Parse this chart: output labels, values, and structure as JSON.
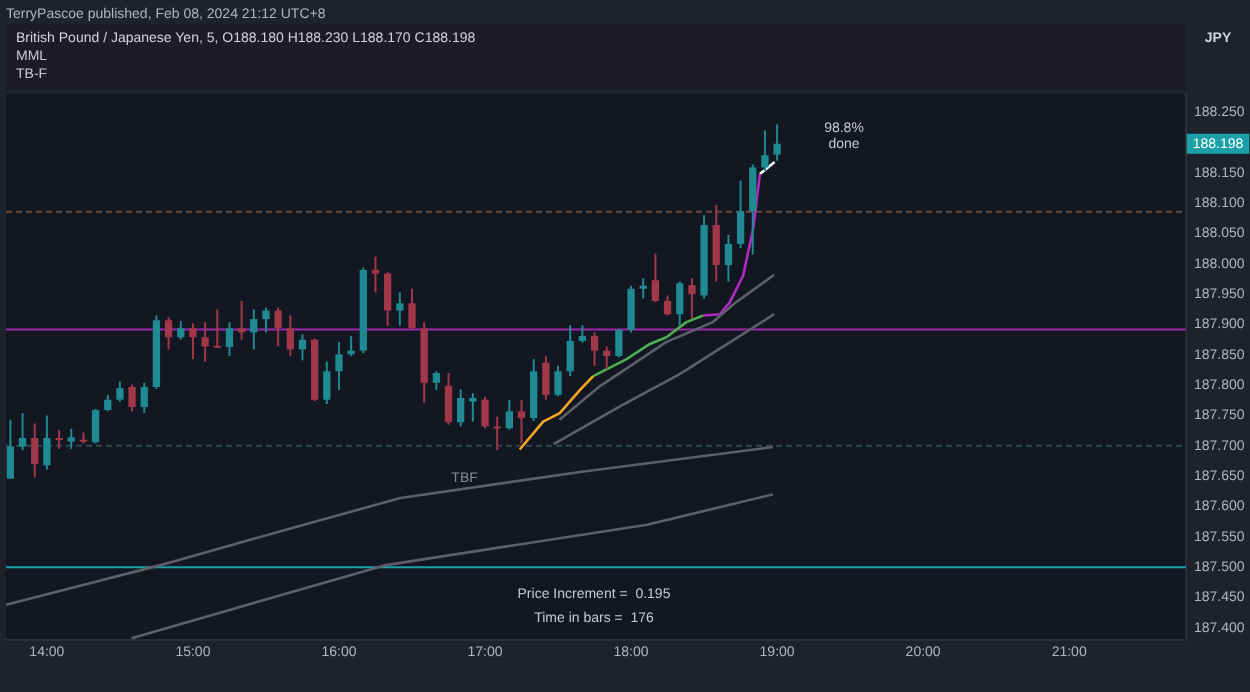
{
  "chart_data": {
    "type": "candlestick",
    "title": "British Pound / Japanese Yen, 5, O188.180 H188.230 L188.170 C188.198",
    "ylabel": "JPY",
    "annotations": [
      "TerryPascoe published, Feb 08, 2024 21:12 UTC+8",
      "MML",
      "TB-F",
      "98.8%\ndone",
      "Price Increment =  0.195",
      "Time in bars =  176",
      {
        "text": "TBF",
        "x": 16.86,
        "y": 187.647
      },
      {
        "text": "188.198",
        "y": 188.198
      }
    ],
    "x": [
      13.75,
      13.8333,
      13.9167,
      14,
      14.0833,
      14.1667,
      14.25,
      14.3333,
      14.4167,
      14.5,
      14.5833,
      14.6667,
      14.75,
      14.8333,
      14.9167,
      15,
      15.0833,
      15.1667,
      15.25,
      15.3333,
      15.4167,
      15.5,
      15.5833,
      15.6667,
      15.75,
      15.8333,
      15.9167,
      16,
      16.0833,
      16.1667,
      16.25,
      16.3333,
      16.4167,
      16.5,
      16.5833,
      16.6667,
      16.75,
      16.8333,
      16.9167,
      17,
      17.0833,
      17.1667,
      17.25,
      17.3333,
      17.4167,
      17.5,
      17.5833,
      17.6667,
      17.75,
      17.8333,
      17.9167,
      18,
      18.0833,
      18.1667,
      18.25,
      18.3333,
      18.4167,
      18.5,
      18.5833,
      18.6667,
      18.75,
      18.8333,
      18.9167,
      19
    ],
    "ohlc": [
      [
        187.646,
        187.743,
        187.646,
        187.699
      ],
      [
        187.699,
        187.754,
        187.693,
        187.713
      ],
      [
        187.713,
        187.737,
        187.648,
        187.67
      ],
      [
        187.668,
        187.75,
        187.661,
        187.713
      ],
      [
        187.713,
        187.726,
        187.695,
        187.711
      ],
      [
        187.707,
        187.728,
        187.695,
        187.714
      ],
      [
        187.71,
        187.722,
        187.704,
        187.708
      ],
      [
        187.706,
        187.761,
        187.704,
        187.759
      ],
      [
        187.759,
        187.784,
        187.757,
        187.776
      ],
      [
        187.776,
        187.806,
        187.773,
        187.795
      ],
      [
        187.797,
        187.801,
        187.757,
        187.764
      ],
      [
        187.764,
        187.804,
        187.754,
        187.797
      ],
      [
        187.797,
        187.915,
        187.794,
        187.907
      ],
      [
        187.907,
        187.912,
        187.859,
        187.879
      ],
      [
        187.879,
        187.906,
        187.875,
        187.894
      ],
      [
        187.894,
        187.902,
        187.843,
        187.879
      ],
      [
        187.879,
        187.904,
        187.839,
        187.864
      ],
      [
        187.865,
        187.925,
        187.862,
        187.863
      ],
      [
        187.863,
        187.904,
        187.848,
        187.894
      ],
      [
        187.894,
        187.939,
        187.875,
        187.887
      ],
      [
        187.887,
        187.925,
        187.859,
        187.909
      ],
      [
        187.909,
        187.928,
        187.887,
        187.923
      ],
      [
        187.923,
        187.928,
        187.864,
        187.894
      ],
      [
        187.894,
        187.915,
        187.848,
        187.859
      ],
      [
        187.859,
        187.884,
        187.841,
        187.875
      ],
      [
        187.875,
        187.877,
        187.774,
        187.776
      ],
      [
        187.776,
        187.839,
        187.769,
        187.823
      ],
      [
        187.823,
        187.871,
        187.792,
        187.851
      ],
      [
        187.851,
        187.881,
        187.848,
        187.857
      ],
      [
        187.857,
        187.994,
        187.853,
        187.99
      ],
      [
        187.99,
        188.012,
        187.953,
        187.984
      ],
      [
        187.984,
        187.987,
        187.898,
        187.923
      ],
      [
        187.923,
        187.953,
        187.898,
        187.935
      ],
      [
        187.935,
        187.959,
        187.892,
        187.894
      ],
      [
        187.894,
        187.904,
        187.771,
        187.804
      ],
      [
        187.804,
        187.823,
        187.792,
        187.82
      ],
      [
        187.799,
        187.82,
        187.735,
        187.739
      ],
      [
        187.739,
        187.793,
        187.732,
        187.779
      ],
      [
        187.773,
        187.787,
        187.74,
        187.779
      ],
      [
        187.776,
        187.781,
        187.729,
        187.732
      ],
      [
        187.732,
        187.748,
        187.693,
        187.729
      ],
      [
        187.729,
        187.776,
        187.727,
        187.757
      ],
      [
        187.757,
        187.776,
        187.704,
        187.746
      ],
      [
        187.746,
        187.843,
        187.741,
        187.823
      ],
      [
        187.837,
        187.848,
        187.776,
        187.784
      ],
      [
        187.784,
        187.832,
        187.782,
        187.823
      ],
      [
        187.823,
        187.899,
        187.815,
        187.873
      ],
      [
        187.873,
        187.899,
        187.87,
        187.881
      ],
      [
        187.881,
        187.887,
        187.832,
        187.857
      ],
      [
        187.857,
        187.864,
        187.827,
        187.848
      ],
      [
        187.848,
        187.893,
        187.846,
        187.891
      ],
      [
        187.891,
        187.964,
        187.887,
        187.959
      ],
      [
        187.959,
        187.976,
        187.943,
        187.964
      ],
      [
        187.973,
        188.017,
        187.937,
        187.939
      ],
      [
        187.939,
        187.948,
        187.915,
        187.917
      ],
      [
        187.917,
        187.971,
        187.898,
        187.968
      ],
      [
        187.965,
        187.976,
        187.909,
        187.95
      ],
      [
        187.948,
        188.08,
        187.943,
        188.064
      ],
      [
        188.064,
        188.097,
        187.971,
        187.998
      ],
      [
        187.998,
        188.048,
        187.971,
        188.033
      ],
      [
        188.033,
        188.137,
        188.026,
        188.087
      ],
      [
        188.087,
        188.164,
        188.015,
        188.159
      ],
      [
        188.159,
        188.22,
        188.153,
        188.179
      ],
      [
        188.18,
        188.23,
        188.17,
        188.198
      ]
    ],
    "colors": [
      "#1f8a91",
      "#1f8a91",
      "#a3374a",
      "#1f8a91",
      "#a3374a",
      "#1f8a91",
      "#a3374a",
      "#1f8a91",
      "#1f8a91",
      "#1f8a91",
      "#a3374a",
      "#1f8a91",
      "#1f8a91",
      "#a3374a",
      "#1f8a91",
      "#a3374a",
      "#a3374a",
      "#a3374a",
      "#1f8a91",
      "#a3374a",
      "#1f8a91",
      "#1f8a91",
      "#a3374a",
      "#a3374a",
      "#1f8a91",
      "#a3374a",
      "#1f8a91",
      "#1f8a91",
      "#1f8a91",
      "#1f8a91",
      "#a3374a",
      "#a3374a",
      "#1f8a91",
      "#a3374a",
      "#a3374a",
      "#1f8a91",
      "#a3374a",
      "#1f8a91",
      "#1f8a91",
      "#a3374a",
      "#a3374a",
      "#1f8a91",
      "#a3374a",
      "#1f8a91",
      "#a3374a",
      "#1f8a91",
      "#1f8a91",
      "#1f8a91",
      "#a3374a",
      "#a3374a",
      "#1f8a91",
      "#1f8a91",
      "#1f8a91",
      "#a3374a",
      "#a3374a",
      "#1f8a91",
      "#a3374a",
      "#1f8a91",
      "#a3374a",
      "#1f8a91",
      "#1f8a91",
      "#1f8a91",
      "#1f8a91",
      "#1f8a91"
    ],
    "series": [
      {
        "type": "line",
        "color": "#5d606b",
        "x": [
          13.72,
          14.77,
          15.76,
          16.42,
          17.65,
          18.97
        ],
        "values": [
          187.438,
          187.503,
          187.57,
          187.614,
          187.657,
          187.698
        ]
      },
      {
        "type": "line",
        "color": "#5d606b",
        "x": [
          14.58,
          16.31,
          18.11,
          18.97
        ],
        "values": [
          187.383,
          187.503,
          187.57,
          187.62
        ]
      },
      {
        "type": "line",
        "color": "#5d606b",
        "x": [
          17.47,
          17.93,
          18.33,
          18.6,
          18.98
        ],
        "values": [
          187.703,
          187.766,
          187.818,
          187.859,
          187.917
        ]
      },
      {
        "type": "line",
        "color": "#5d606b",
        "x": [
          17.51,
          17.79,
          18.24,
          18.56,
          18.72,
          18.98
        ],
        "values": [
          187.743,
          187.799,
          187.871,
          187.904,
          187.937,
          187.982
        ]
      },
      {
        "type": "line",
        "color": "#f5a623",
        "x": [
          17.238,
          17.398,
          17.512,
          17.649,
          17.741
        ],
        "values": [
          187.694,
          187.74,
          187.754,
          187.792,
          187.815
        ]
      },
      {
        "type": "line",
        "color": "#4caf50",
        "x": [
          17.741,
          17.969,
          18.129,
          18.242,
          18.379,
          18.494
        ],
        "values": [
          187.815,
          187.843,
          187.868,
          187.879,
          187.904,
          187.915
        ]
      },
      {
        "type": "line",
        "color": "#b02cc0",
        "x": [
          18.494,
          18.608,
          18.677,
          18.768,
          18.837,
          18.882
        ],
        "values": [
          187.915,
          187.917,
          187.937,
          187.981,
          188.059,
          188.148
        ]
      },
      {
        "type": "line",
        "color": "#ffffff",
        "x": [
          18.882,
          18.983
        ],
        "values": [
          188.148,
          188.168
        ]
      }
    ],
    "ref_lines": [
      {
        "axis": "y",
        "value": 188.086,
        "color": "#6b4a3a",
        "line_style": "dashed"
      },
      {
        "axis": "y",
        "value": 187.892,
        "color": "#9c27b0"
      },
      {
        "axis": "y",
        "value": 187.7,
        "color": "#2c4a4f",
        "line_style": "dashed"
      },
      {
        "axis": "y",
        "value": 187.5,
        "color": "#1aa0a6"
      }
    ],
    "xlim": [
      13.72,
      21.8
    ],
    "xticks": [
      {
        "value": 14,
        "label": "14:00"
      },
      {
        "value": 15,
        "label": "15:00"
      },
      {
        "value": 16,
        "label": "16:00"
      },
      {
        "value": 17,
        "label": "17:00"
      },
      {
        "value": 18,
        "label": "18:00"
      },
      {
        "value": 19,
        "label": "19:00"
      },
      {
        "value": 20,
        "label": "20:00"
      },
      {
        "value": 21,
        "label": "21:00"
      }
    ],
    "ylim": [
      187.38,
      188.28
    ],
    "yticks": [
      {
        "value": 187.4,
        "label": "187.400"
      },
      {
        "value": 187.45,
        "label": "187.450"
      },
      {
        "value": 187.5,
        "label": "187.500"
      },
      {
        "value": 187.55,
        "label": "187.550"
      },
      {
        "value": 187.6,
        "label": "187.600"
      },
      {
        "value": 187.65,
        "label": "187.650"
      },
      {
        "value": 187.7,
        "label": "187.700"
      },
      {
        "value": 187.75,
        "label": "187.750"
      },
      {
        "value": 187.8,
        "label": "187.800"
      },
      {
        "value": 187.85,
        "label": "187.850"
      },
      {
        "value": 187.9,
        "label": "187.900"
      },
      {
        "value": 187.95,
        "label": "187.950"
      },
      {
        "value": 188,
        "label": "188.000"
      },
      {
        "value": 188.05,
        "label": "188.050"
      },
      {
        "value": 188.1,
        "label": "188.100"
      },
      {
        "value": 188.15,
        "label": "188.150"
      },
      {
        "value": 188.25,
        "label": "188.250"
      }
    ]
  }
}
